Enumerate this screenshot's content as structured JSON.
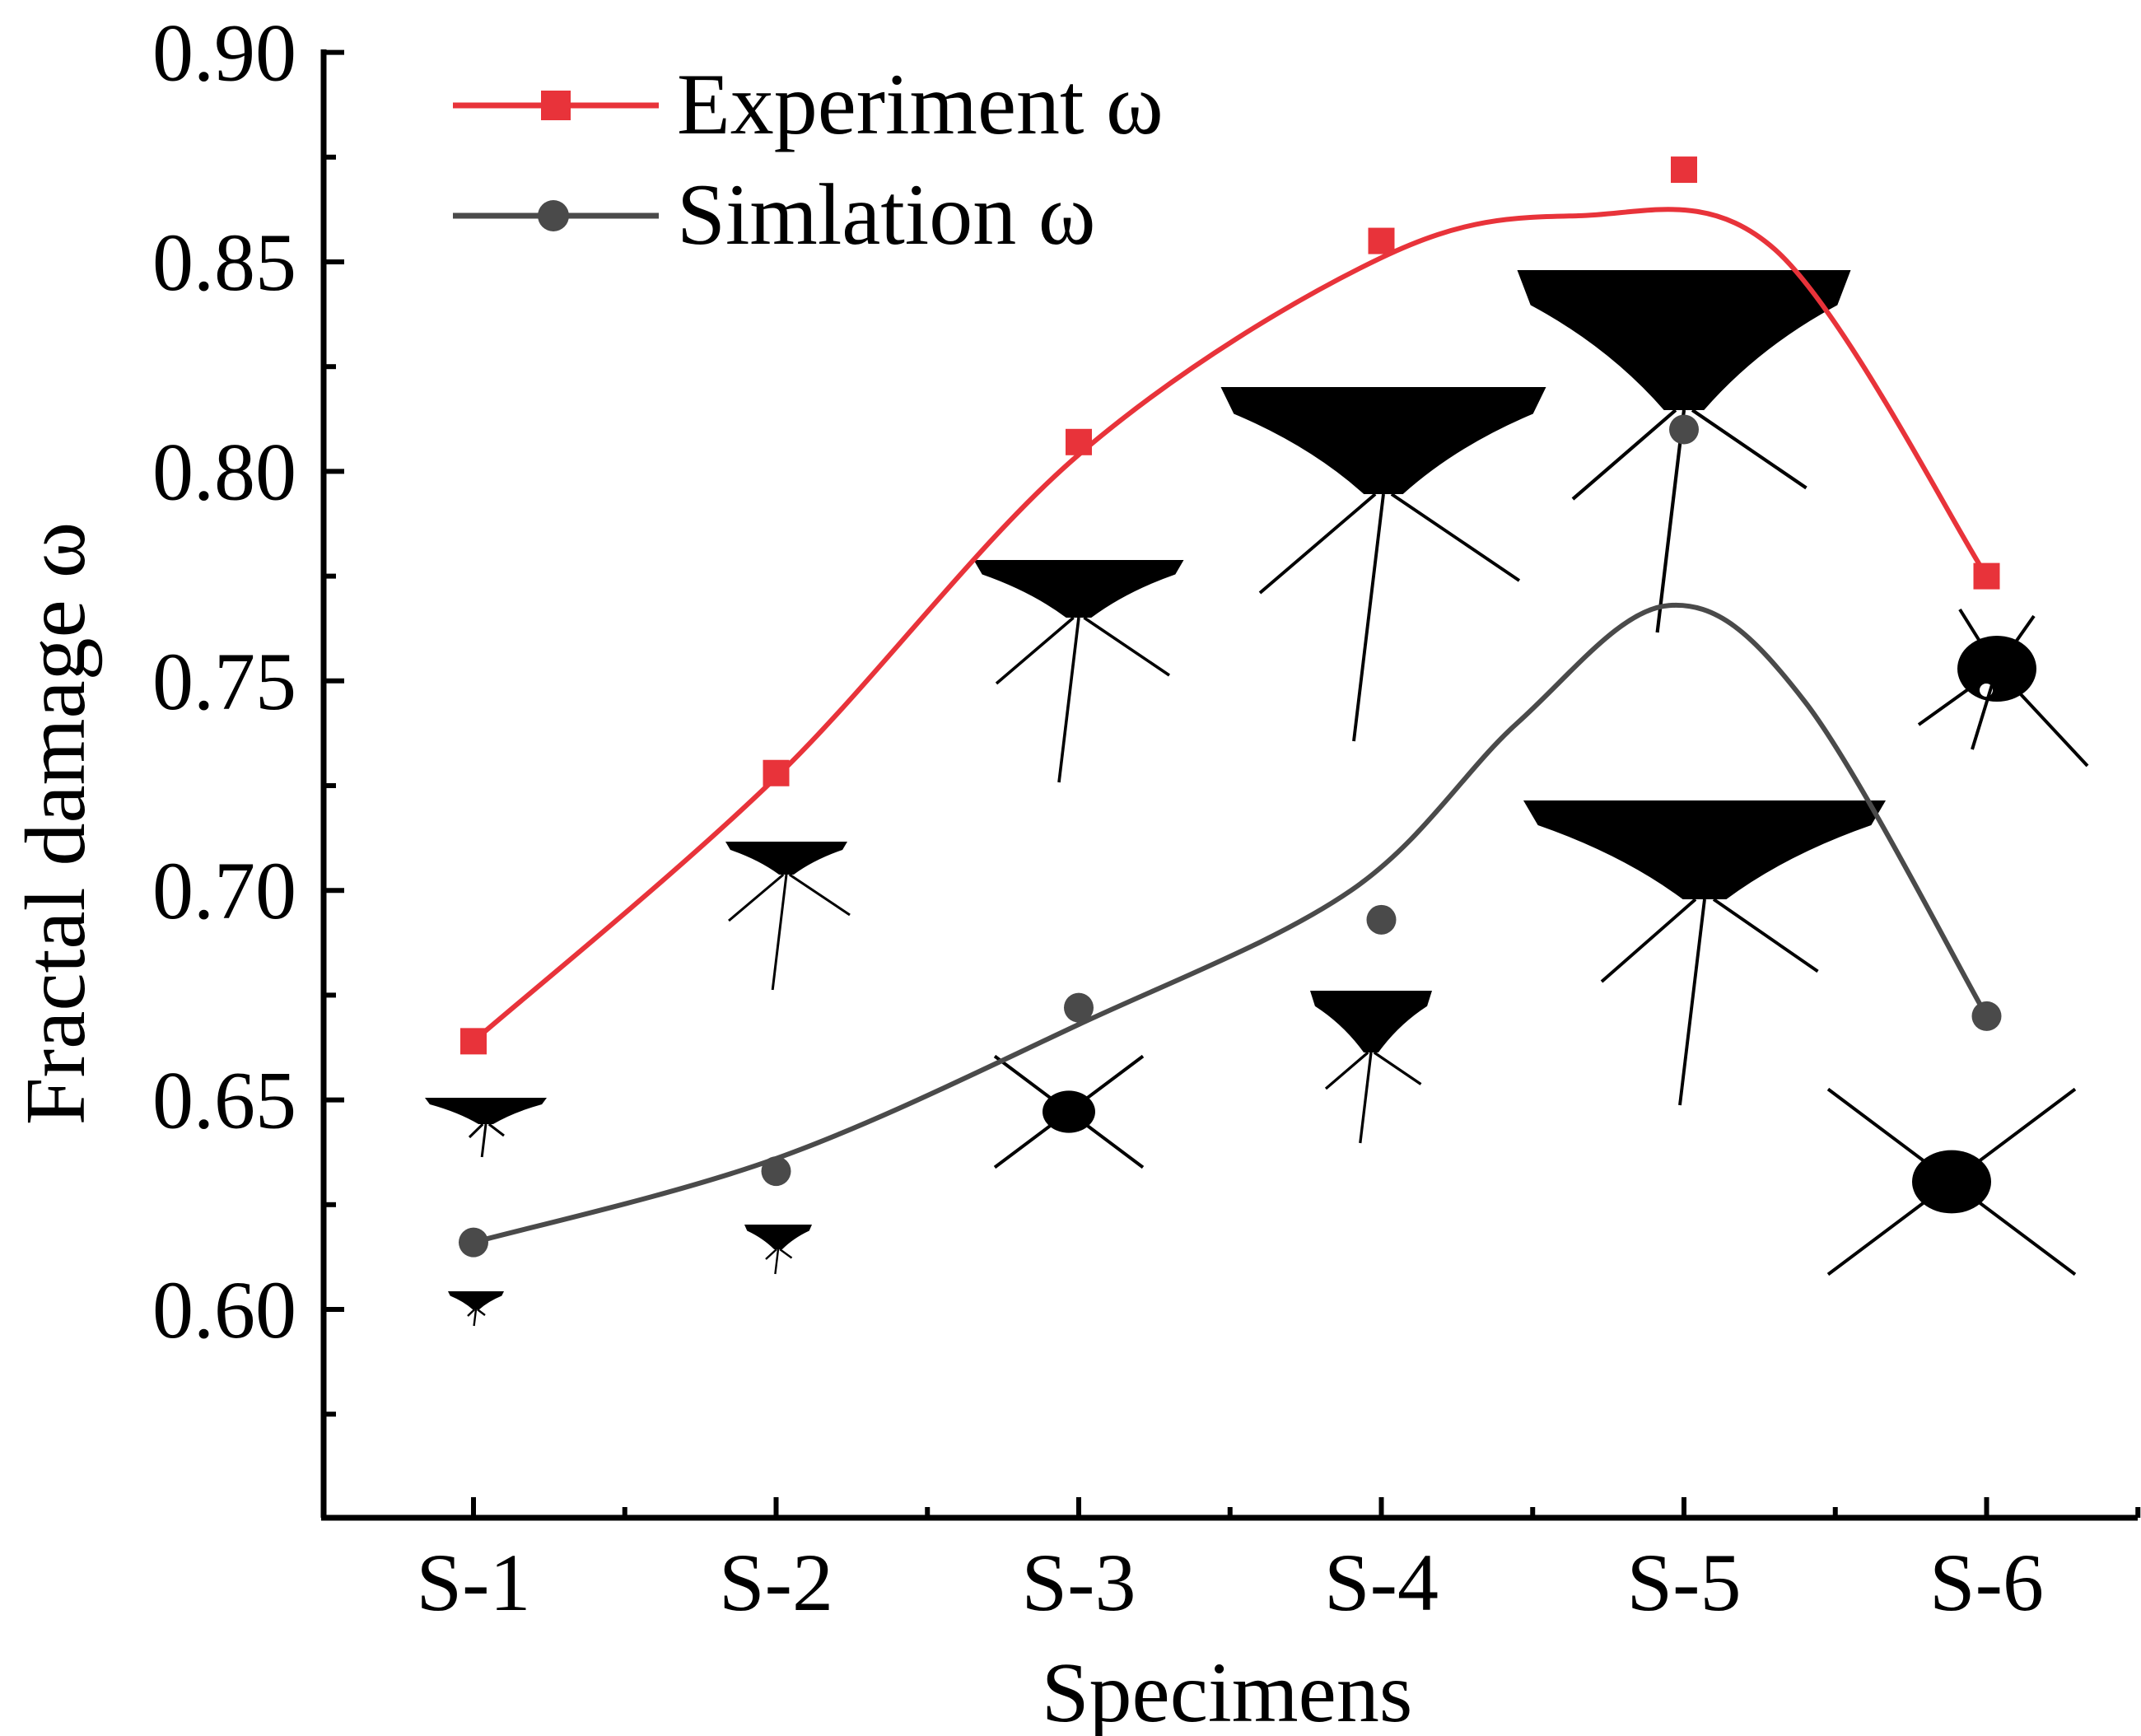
{
  "chart_data": {
    "type": "line",
    "categories": [
      "S-1",
      "S-2",
      "S-3",
      "S-4",
      "S-5",
      "S-6"
    ],
    "xlabel": "Specimens",
    "ylabel": "Fractal damage ω",
    "ylim": [
      0.55,
      0.9
    ],
    "yticks": [
      0.6,
      0.65,
      0.7,
      0.75,
      0.8,
      0.85,
      0.9
    ],
    "ytick_labels": [
      "0.60",
      "0.65",
      "0.70",
      "0.75",
      "0.80",
      "0.85",
      "0.90"
    ],
    "series": [
      {
        "name": "Experiment ω",
        "color": "#e8333a",
        "marker": "square",
        "values": [
          0.664,
          0.728,
          0.807,
          0.855,
          0.872,
          0.775
        ],
        "smooth_peak": {
          "category_pos": 3.65,
          "value": 0.861
        }
      },
      {
        "name": "Simlation ω",
        "color": "#4a4a4a",
        "marker": "circle",
        "values": [
          0.616,
          0.633,
          0.672,
          0.693,
          0.81,
          0.67
        ],
        "smooth_peak": {
          "category_pos": 3.95,
          "value": 0.768
        }
      }
    ],
    "legend": "top-left",
    "grid": false,
    "inset_images": "black crack-pattern silhouettes under each specimen point"
  }
}
